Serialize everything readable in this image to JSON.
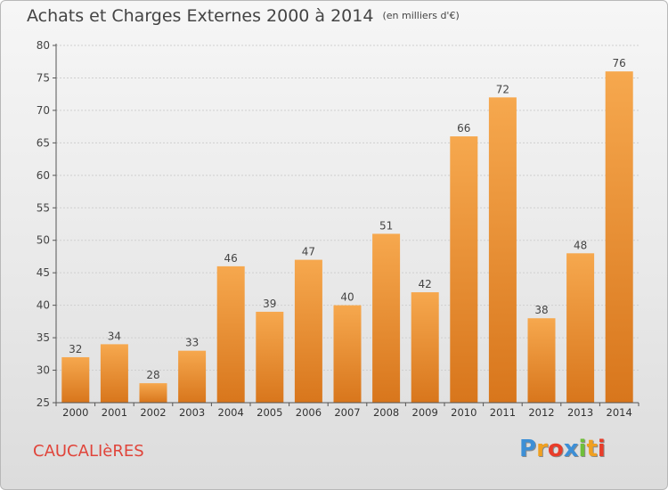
{
  "title": "Achats et Charges Externes 2000 à 2014",
  "unit_note": "(en milliers d'€)",
  "commune": "CAUCALIèRES",
  "logo": {
    "letters": [
      "P",
      "r",
      "o",
      "x",
      "i",
      "t",
      "i"
    ],
    "colors": [
      "#3d8fd6",
      "#f0a020",
      "#e83d2a",
      "#3d8fd6",
      "#6fbf3a",
      "#f0a020",
      "#e83d2a"
    ]
  },
  "colors": {
    "bar_light": "#f6a84e",
    "bar_dark": "#d8761c",
    "grid": "#cfcfcf",
    "axis": "#555555"
  },
  "chart_data": {
    "type": "bar",
    "categories": [
      "2000",
      "2001",
      "2002",
      "2003",
      "2004",
      "2005",
      "2006",
      "2007",
      "2008",
      "2009",
      "2010",
      "2011",
      "2012",
      "2013",
      "2014"
    ],
    "values": [
      32,
      34,
      28,
      33,
      46,
      39,
      47,
      40,
      51,
      42,
      66,
      72,
      38,
      48,
      76
    ],
    "title": "Achats et Charges Externes 2000 à 2014",
    "xlabel": "",
    "ylabel": "",
    "ylim": [
      25,
      80
    ],
    "yticks": [
      25,
      30,
      35,
      40,
      45,
      50,
      55,
      60,
      65,
      70,
      75,
      80
    ],
    "grid": true,
    "data_labels": true
  }
}
